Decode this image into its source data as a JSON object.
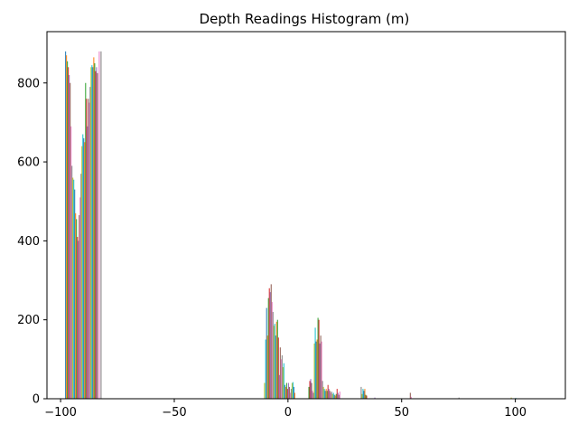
{
  "chart_data": {
    "type": "bar",
    "title": "Depth Readings Histogram (m)",
    "xlabel": "",
    "ylabel": "",
    "xlim": [
      -106,
      122
    ],
    "ylim": [
      0,
      930
    ],
    "xticks": [
      -100,
      -50,
      0,
      50,
      100
    ],
    "xtick_labels": [
      "−100",
      "−50",
      "0",
      "50",
      "100"
    ],
    "yticks": [
      0,
      200,
      400,
      600,
      800
    ],
    "ytick_labels": [
      "0",
      "200",
      "400",
      "600",
      "800"
    ],
    "grid": false,
    "legend": "none",
    "colors": [
      "#1f77b4",
      "#ff7f0e",
      "#2ca02c",
      "#d62728",
      "#9467bd",
      "#8c564b",
      "#e377c2",
      "#7f7f7f",
      "#bcbd22",
      "#17becf"
    ],
    "bars": [
      {
        "x": -98.0,
        "y": 880
      },
      {
        "x": -97.6,
        "y": 870
      },
      {
        "x": -97.2,
        "y": 855
      },
      {
        "x": -96.8,
        "y": 840
      },
      {
        "x": -96.4,
        "y": 820
      },
      {
        "x": -96.0,
        "y": 800
      },
      {
        "x": -95.6,
        "y": 690
      },
      {
        "x": -95.2,
        "y": 590
      },
      {
        "x": -94.8,
        "y": 560
      },
      {
        "x": -94.4,
        "y": 555
      },
      {
        "x": -94.0,
        "y": 530
      },
      {
        "x": -93.6,
        "y": 470
      },
      {
        "x": -93.2,
        "y": 455
      },
      {
        "x": -92.8,
        "y": 410
      },
      {
        "x": -92.4,
        "y": 400
      },
      {
        "x": -92.0,
        "y": 465
      },
      {
        "x": -91.6,
        "y": 510
      },
      {
        "x": -91.2,
        "y": 570
      },
      {
        "x": -90.8,
        "y": 640
      },
      {
        "x": -90.4,
        "y": 670
      },
      {
        "x": -90.0,
        "y": 660
      },
      {
        "x": -89.6,
        "y": 650
      },
      {
        "x": -89.2,
        "y": 800
      },
      {
        "x": -88.8,
        "y": 760
      },
      {
        "x": -88.4,
        "y": 690
      },
      {
        "x": -88.0,
        "y": 760
      },
      {
        "x": -87.6,
        "y": 750
      },
      {
        "x": -87.2,
        "y": 790
      },
      {
        "x": -86.8,
        "y": 840
      },
      {
        "x": -86.4,
        "y": 845
      },
      {
        "x": -86.0,
        "y": 840
      },
      {
        "x": -85.6,
        "y": 865
      },
      {
        "x": -85.2,
        "y": 850
      },
      {
        "x": -84.8,
        "y": 830
      },
      {
        "x": -84.4,
        "y": 840
      },
      {
        "x": -84.0,
        "y": 825
      },
      {
        "x": -83.2,
        "y": 880
      },
      {
        "x": -82.4,
        "y": 880
      },
      {
        "x": -10.5,
        "y": 40
      },
      {
        "x": -10.0,
        "y": 150
      },
      {
        "x": -9.6,
        "y": 230
      },
      {
        "x": -9.2,
        "y": 160
      },
      {
        "x": -8.8,
        "y": 255
      },
      {
        "x": -8.4,
        "y": 280
      },
      {
        "x": -8.0,
        "y": 270
      },
      {
        "x": -7.6,
        "y": 290
      },
      {
        "x": -7.2,
        "y": 245
      },
      {
        "x": -6.8,
        "y": 220
      },
      {
        "x": -6.4,
        "y": 185
      },
      {
        "x": -6.0,
        "y": 190
      },
      {
        "x": -5.6,
        "y": 160
      },
      {
        "x": -5.2,
        "y": 195
      },
      {
        "x": -4.8,
        "y": 200
      },
      {
        "x": -4.4,
        "y": 155
      },
      {
        "x": -4.0,
        "y": 60
      },
      {
        "x": -3.6,
        "y": 130
      },
      {
        "x": -3.2,
        "y": 100
      },
      {
        "x": -2.8,
        "y": 110
      },
      {
        "x": -2.4,
        "y": 80
      },
      {
        "x": -2.0,
        "y": 90
      },
      {
        "x": -1.6,
        "y": 35
      },
      {
        "x": -1.2,
        "y": 30
      },
      {
        "x": -0.8,
        "y": 40
      },
      {
        "x": -0.4,
        "y": 25
      },
      {
        "x": 0.0,
        "y": 40
      },
      {
        "x": 0.4,
        "y": 30
      },
      {
        "x": 0.8,
        "y": 15
      },
      {
        "x": 1.2,
        "y": 25
      },
      {
        "x": 1.6,
        "y": 40
      },
      {
        "x": 2.0,
        "y": 42
      },
      {
        "x": 2.4,
        "y": 30
      },
      {
        "x": 2.8,
        "y": 15
      },
      {
        "x": 9.0,
        "y": 30
      },
      {
        "x": 9.4,
        "y": 45
      },
      {
        "x": 9.8,
        "y": 50
      },
      {
        "x": 10.2,
        "y": 40
      },
      {
        "x": 10.6,
        "y": 20
      },
      {
        "x": 11.0,
        "y": 15
      },
      {
        "x": 11.4,
        "y": 140
      },
      {
        "x": 11.8,
        "y": 180
      },
      {
        "x": 12.2,
        "y": 145
      },
      {
        "x": 12.6,
        "y": 150
      },
      {
        "x": 13.0,
        "y": 205
      },
      {
        "x": 13.4,
        "y": 200
      },
      {
        "x": 13.8,
        "y": 140
      },
      {
        "x": 14.2,
        "y": 160
      },
      {
        "x": 14.6,
        "y": 145
      },
      {
        "x": 15.0,
        "y": 45
      },
      {
        "x": 15.4,
        "y": 30
      },
      {
        "x": 15.8,
        "y": 25
      },
      {
        "x": 16.2,
        "y": 20
      },
      {
        "x": 16.6,
        "y": 25
      },
      {
        "x": 17.0,
        "y": 20
      },
      {
        "x": 17.4,
        "y": 35
      },
      {
        "x": 17.8,
        "y": 25
      },
      {
        "x": 18.2,
        "y": 20
      },
      {
        "x": 18.6,
        "y": 15
      },
      {
        "x": 19.0,
        "y": 18
      },
      {
        "x": 19.4,
        "y": 12
      },
      {
        "x": 19.8,
        "y": 15
      },
      {
        "x": 20.2,
        "y": 10
      },
      {
        "x": 20.6,
        "y": 8
      },
      {
        "x": 21.0,
        "y": 12
      },
      {
        "x": 21.4,
        "y": 25
      },
      {
        "x": 21.8,
        "y": 15
      },
      {
        "x": 22.2,
        "y": 10
      },
      {
        "x": 22.6,
        "y": 18
      },
      {
        "x": 32.0,
        "y": 30
      },
      {
        "x": 32.4,
        "y": 12
      },
      {
        "x": 32.8,
        "y": 25
      },
      {
        "x": 33.2,
        "y": 20
      },
      {
        "x": 33.6,
        "y": 25
      },
      {
        "x": 34.0,
        "y": 10
      },
      {
        "x": 34.4,
        "y": 8
      },
      {
        "x": 38.0,
        "y": 3
      },
      {
        "x": 53.6,
        "y": 15
      },
      {
        "x": 54.0,
        "y": 5
      },
      {
        "x": 75.0,
        "y": 3
      },
      {
        "x": 98.0,
        "y": 3
      },
      {
        "x": 100.0,
        "y": 2
      }
    ]
  }
}
